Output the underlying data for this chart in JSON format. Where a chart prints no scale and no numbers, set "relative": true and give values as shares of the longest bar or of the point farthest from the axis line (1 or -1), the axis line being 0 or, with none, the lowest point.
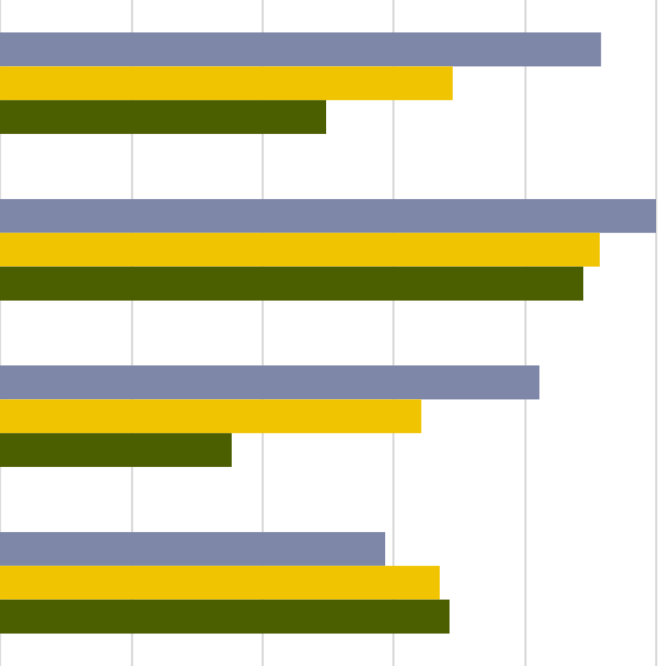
{
  "chart_data": {
    "type": "bar",
    "orientation": "horizontal",
    "relative": true,
    "grid": "x",
    "categories": [
      null,
      null,
      null,
      null
    ],
    "series": [
      {
        "color": "#7f87a8",
        "values": [
          0.916,
          1,
          0.822,
          0.587
        ]
      },
      {
        "color": "#f0c400",
        "values": [
          0.69,
          0.914,
          0.642,
          0.67
        ]
      },
      {
        "color": "#4b5e00",
        "values": [
          0.497,
          0.889,
          0.353,
          0.685
        ]
      }
    ]
  }
}
